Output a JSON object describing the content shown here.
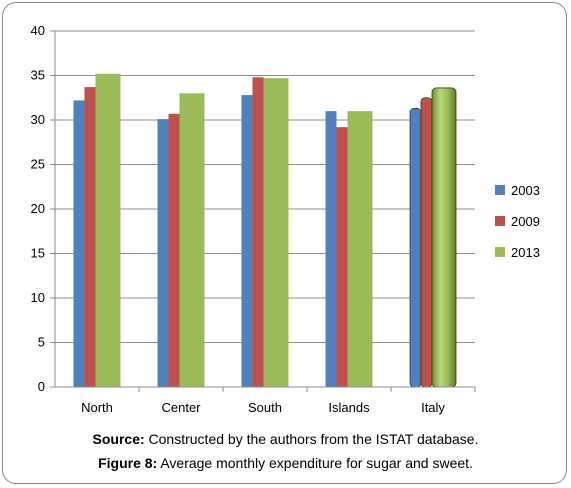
{
  "chart_data": {
    "type": "bar",
    "categories": [
      "North",
      "Center",
      "South",
      "Islands",
      "Italy"
    ],
    "series": [
      {
        "name": "2003",
        "color": "#4f81bd",
        "values": [
          32.2,
          30.1,
          32.8,
          31.0,
          31.3
        ]
      },
      {
        "name": "2009",
        "color": "#c0504d",
        "values": [
          33.7,
          30.7,
          34.8,
          29.2,
          32.5
        ]
      },
      {
        "name": "2013",
        "color": "#9bbb59",
        "values": [
          35.2,
          33.0,
          34.7,
          31.0,
          33.6
        ]
      }
    ],
    "ylim": [
      0,
      40
    ],
    "yticks": [
      0,
      5,
      10,
      15,
      20,
      25,
      30,
      35,
      40
    ],
    "grid": true,
    "legend": "right",
    "highlighted_category": "Italy"
  },
  "captions": {
    "source_label": "Source:",
    "source_text": " Constructed by the authors from the ISTAT database.",
    "figure_label": "Figure 8:",
    "figure_text": " Average monthly expenditure for sugar and sweet."
  }
}
